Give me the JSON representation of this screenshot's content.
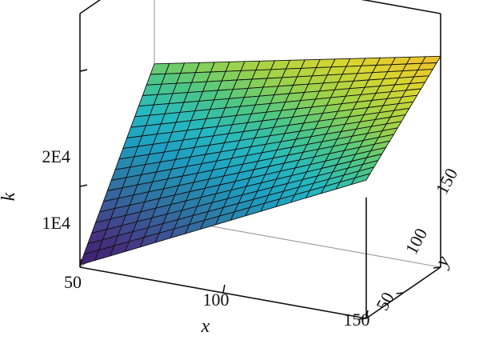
{
  "chart_data": {
    "type": "surface",
    "title": "",
    "xlabel": "x",
    "ylabel": "y",
    "zlabel": "k",
    "x_range": [
      50,
      150
    ],
    "y_range": [
      50,
      150
    ],
    "z_range": [
      3000,
      25000
    ],
    "x_ticks": [
      {
        "value": 50,
        "label": "50"
      },
      {
        "value": 100,
        "label": "100"
      },
      {
        "value": 150,
        "label": "150"
      }
    ],
    "y_ticks": [
      {
        "value": 50,
        "label": "50"
      },
      {
        "value": 100,
        "label": "100"
      },
      {
        "value": 150,
        "label": "150"
      }
    ],
    "z_ticks": [
      {
        "value": 10000,
        "label": "1E4"
      },
      {
        "value": 20000,
        "label": "2E4"
      }
    ],
    "grid_size": [
      19,
      19
    ],
    "corner_values": {
      "x50_y50": 3200,
      "x150_y50": 15000,
      "x50_y150": 16200,
      "x150_y150": 23500
    },
    "colormap": [
      "#3b1f6e",
      "#46317f",
      "#3a5a98",
      "#2a7fa8",
      "#1f9ec2",
      "#25b9c0",
      "#4dc784",
      "#9bd24a",
      "#d9d62f",
      "#f2bd2c",
      "#f6e82a"
    ]
  }
}
